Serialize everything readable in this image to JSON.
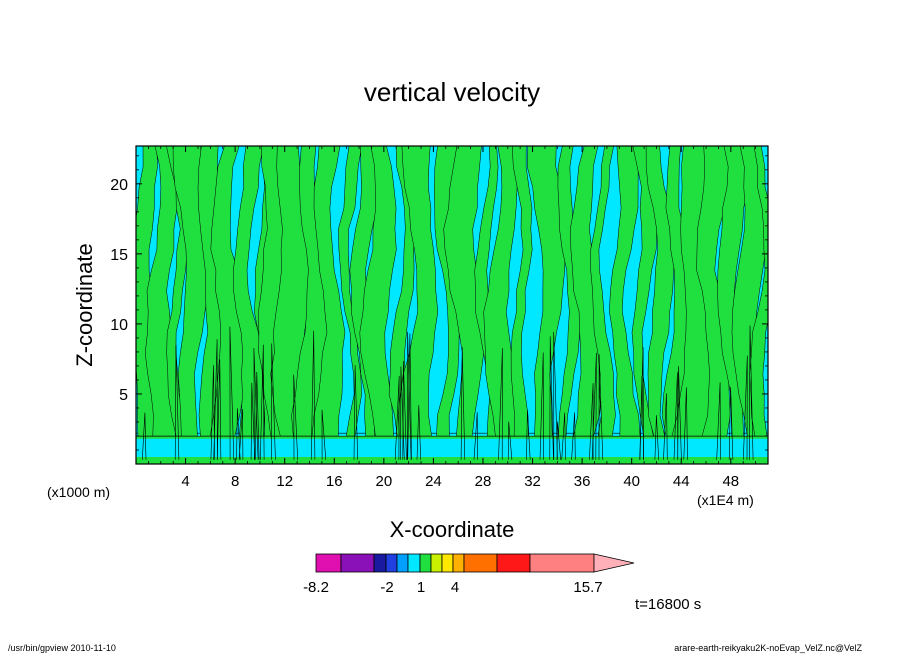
{
  "chart_data": {
    "type": "heatmap",
    "title": "vertical velocity",
    "xlabel": "X-coordinate",
    "ylabel": "Z-coordinate",
    "x_unit_left": "(x1000 m)",
    "x_unit_right": "(x1E4 m)",
    "x_ticks": [
      "4",
      "8",
      "12",
      "16",
      "20",
      "24",
      "28",
      "32",
      "36",
      "40",
      "44",
      "48"
    ],
    "y_ticks": [
      "5",
      "10",
      "15",
      "20"
    ],
    "xlim": [
      0,
      51
    ],
    "ylim": [
      0,
      22.7
    ],
    "time_label": "t=16800 s",
    "colorbar": {
      "labels": [
        "-8.2",
        "-2",
        "1",
        "4",
        "15.7"
      ],
      "colors": [
        "#e010b0",
        "#8a10b8",
        "#1a1aa0",
        "#2040e0",
        "#00a0ff",
        "#00e8ff",
        "#20e040",
        "#c8f000",
        "#ffe800",
        "#ffb000",
        "#ff7000",
        "#ff1818",
        "#ff8080",
        "#ffb0b8"
      ]
    },
    "field_colors": {
      "negative": "#00e8ff",
      "positive": "#20e040"
    }
  },
  "footer": {
    "left": "/usr/bin/gpview   2010-11-10",
    "right": "arare-earth-reikyaku2K-noEvap_VelZ.nc@VelZ"
  }
}
